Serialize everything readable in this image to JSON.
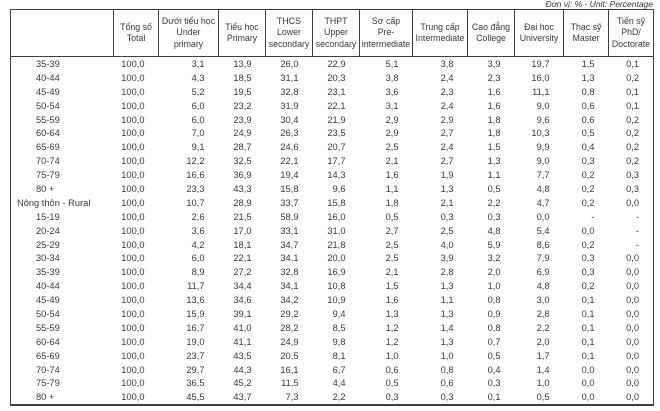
{
  "unit_note": "Đơn vị: % - Unit: Percentage",
  "table": {
    "columns": [
      {
        "label": ""
      },
      {
        "label": "Tổng số\nTotal"
      },
      {
        "label": "Dưới tiểu học\nUnder\nprimary"
      },
      {
        "label": "Tiểu học\nPrimary"
      },
      {
        "label": "THCS\nLower\nsecondary"
      },
      {
        "label": "THPT\nUpper\nsecondary"
      },
      {
        "label": "Sơ cấp\nPre-\nintermediate"
      },
      {
        "label": "Trung cấp\nIntermediate"
      },
      {
        "label": "Cao đẳng\nCollege"
      },
      {
        "label": "Đại học\nUniversity"
      },
      {
        "label": "Thạc sỹ\nMaster"
      },
      {
        "label": "Tiến sỹ\nPhD/\nDoctorate"
      }
    ],
    "rows": [
      {
        "label": "35-39",
        "group": false,
        "values": [
          "100,0",
          "3,1",
          "13,9",
          "26,0",
          "22,9",
          "5,1",
          "3,8",
          "3,9",
          "19,7",
          "1,5",
          "0,1"
        ]
      },
      {
        "label": "40-44",
        "group": false,
        "values": [
          "100,0",
          "4,3",
          "18,5",
          "31,1",
          "20,3",
          "3,8",
          "2,4",
          "2,3",
          "16,0",
          "1,3",
          "0,2"
        ]
      },
      {
        "label": "45-49",
        "group": false,
        "values": [
          "100,0",
          "5,2",
          "19,5",
          "32,8",
          "23,1",
          "3,6",
          "2,3",
          "1,6",
          "11,1",
          "0,8",
          "0,1"
        ]
      },
      {
        "label": "50-54",
        "group": false,
        "values": [
          "100,0",
          "6,0",
          "23,2",
          "31,9",
          "22,1",
          "3,1",
          "2,4",
          "1,6",
          "9,0",
          "0,6",
          "0,1"
        ]
      },
      {
        "label": "55-59",
        "group": false,
        "values": [
          "100,0",
          "6,0",
          "23,9",
          "30,4",
          "21,9",
          "2,9",
          "2,9",
          "1,8",
          "9,6",
          "0,6",
          "0,2"
        ]
      },
      {
        "label": "60-64",
        "group": false,
        "values": [
          "100,0",
          "7,0",
          "24,9",
          "26,3",
          "23,5",
          "2,9",
          "2,7",
          "1,8",
          "10,3",
          "0,5",
          "0,2"
        ]
      },
      {
        "label": "65-69",
        "group": false,
        "values": [
          "100,0",
          "9,1",
          "28,7",
          "24,6",
          "20,7",
          "2,5",
          "2,4",
          "1,5",
          "9,9",
          "0,4",
          "0,2"
        ]
      },
      {
        "label": "70-74",
        "group": false,
        "values": [
          "100,0",
          "12,2",
          "32,5",
          "22,1",
          "17,7",
          "2,1",
          "2,7",
          "1,3",
          "9,0",
          "0,3",
          "0,2"
        ]
      },
      {
        "label": "75-79",
        "group": false,
        "values": [
          "100,0",
          "16,6",
          "36,9",
          "19,4",
          "14,3",
          "1,6",
          "1,9",
          "1,1",
          "7,7",
          "0,2",
          "0,3"
        ]
      },
      {
        "label": "80 +",
        "group": false,
        "values": [
          "100,0",
          "23,3",
          "43,3",
          "15,8",
          "9,6",
          "1,1",
          "1,3",
          "0,5",
          "4,8",
          "0,2",
          "0,3"
        ]
      },
      {
        "label": "Nông thôn - Rural",
        "group": true,
        "values": [
          "100,0",
          "10,7",
          "28,9",
          "33,7",
          "15,8",
          "1,8",
          "2,1",
          "2,2",
          "4,7",
          "0,2",
          "0,0"
        ]
      },
      {
        "label": "15-19",
        "group": false,
        "values": [
          "100,0",
          "2,6",
          "21,5",
          "58,9",
          "16,0",
          "0,5",
          "0,3",
          "0,3",
          "0,0",
          "-",
          "-"
        ]
      },
      {
        "label": "20-24",
        "group": false,
        "values": [
          "100,0",
          "3,6",
          "17,0",
          "33,1",
          "31,0",
          "2,7",
          "2,5",
          "4,8",
          "5,4",
          "0,0",
          "-"
        ]
      },
      {
        "label": "25-29",
        "group": false,
        "values": [
          "100,0",
          "4,2",
          "18,1",
          "34,7",
          "21,8",
          "2,5",
          "4,0",
          "5,9",
          "8,6",
          "0,2",
          "-"
        ]
      },
      {
        "label": "30-34",
        "group": false,
        "values": [
          "100,0",
          "6,0",
          "22,1",
          "34,1",
          "20,0",
          "2,5",
          "3,9",
          "3,2",
          "7,9",
          "0,3",
          "0,0"
        ]
      },
      {
        "label": "35-39",
        "group": false,
        "values": [
          "100,0",
          "8,9",
          "27,2",
          "32,8",
          "16,9",
          "2,1",
          "2,8",
          "2,0",
          "6,9",
          "0,3",
          "0,0"
        ]
      },
      {
        "label": "40-44",
        "group": false,
        "values": [
          "100,0",
          "11,7",
          "34,4",
          "34,1",
          "10,8",
          "1,5",
          "1,3",
          "1,0",
          "4,8",
          "0,2",
          "0,0"
        ]
      },
      {
        "label": "45-49",
        "group": false,
        "values": [
          "100,0",
          "13,6",
          "34,6",
          "34,2",
          "10,9",
          "1,6",
          "1,1",
          "0,8",
          "3,0",
          "0,1",
          "0,0"
        ]
      },
      {
        "label": "50-54",
        "group": false,
        "values": [
          "100,0",
          "15,9",
          "39,1",
          "29,2",
          "9,4",
          "1,3",
          "1,3",
          "0,9",
          "2,8",
          "0,1",
          "0,0"
        ]
      },
      {
        "label": "55-59",
        "group": false,
        "values": [
          "100,0",
          "16,7",
          "41,0",
          "28,2",
          "8,5",
          "1,2",
          "1,4",
          "0,8",
          "2,2",
          "0,1",
          "0,0"
        ]
      },
      {
        "label": "60-64",
        "group": false,
        "values": [
          "100,0",
          "19,0",
          "41,1",
          "24,9",
          "9,8",
          "1,2",
          "1,3",
          "0,7",
          "2,0",
          "0,1",
          "0,0"
        ]
      },
      {
        "label": "65-69",
        "group": false,
        "values": [
          "100,0",
          "23,7",
          "43,5",
          "20,5",
          "8,1",
          "1,0",
          "1,0",
          "0,5",
          "1,7",
          "0,1",
          "0,0"
        ]
      },
      {
        "label": "70-74",
        "group": false,
        "values": [
          "100,0",
          "29,7",
          "44,3",
          "16,1",
          "6,7",
          "0,6",
          "0,8",
          "0,4",
          "1,4",
          "0,0",
          "0,0"
        ]
      },
      {
        "label": "75-79",
        "group": false,
        "values": [
          "100,0",
          "36,5",
          "45,2",
          "11,5",
          "4,4",
          "0,5",
          "0,6",
          "0,3",
          "1,0",
          "0,0",
          "0,0"
        ]
      },
      {
        "label": "80 +",
        "group": false,
        "values": [
          "100,0",
          "45,5",
          "43,7",
          "7,3",
          "2,2",
          "0,3",
          "0,3",
          "0,1",
          "0,5",
          "0,0",
          "0,0"
        ]
      }
    ]
  }
}
